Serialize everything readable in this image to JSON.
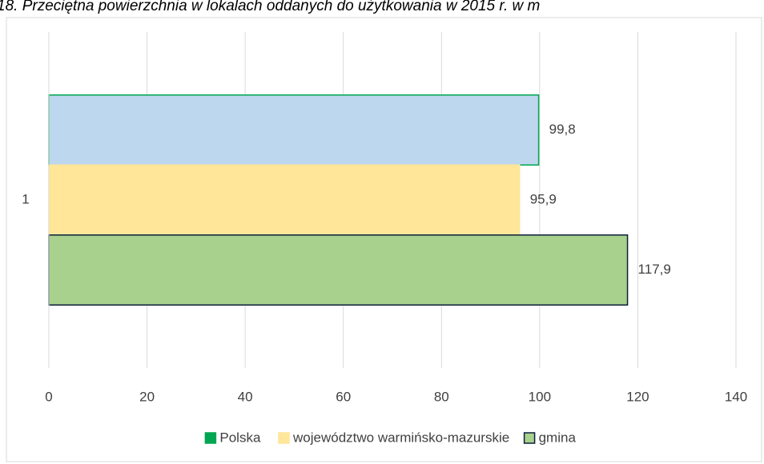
{
  "chart_data": {
    "type": "barh",
    "title": "18. Przeciętna powierzchnia w lokalach oddanych do użytkowania w 2015 r. w m",
    "categories": [
      "1"
    ],
    "series": [
      {
        "name": "Polska",
        "color": "#bdd7ee",
        "edgecolor": "#00a650",
        "values": [
          99.8
        ],
        "value_labels": [
          "99,8"
        ]
      },
      {
        "name": "województwo warmińsko-mazurskie",
        "color": "#ffe699",
        "edgecolor": "#ffe699",
        "values": [
          95.9
        ],
        "value_labels": [
          "95,9"
        ]
      },
      {
        "name": "gmina",
        "color": "#a9d18e",
        "edgecolor": "#0d1f3c",
        "values": [
          117.9
        ],
        "value_labels": [
          "117,9"
        ]
      }
    ],
    "xlim": [
      0,
      140
    ],
    "xticks": [
      0,
      20,
      40,
      60,
      80,
      100,
      120,
      140
    ],
    "grid": true,
    "legend": "bottom"
  }
}
